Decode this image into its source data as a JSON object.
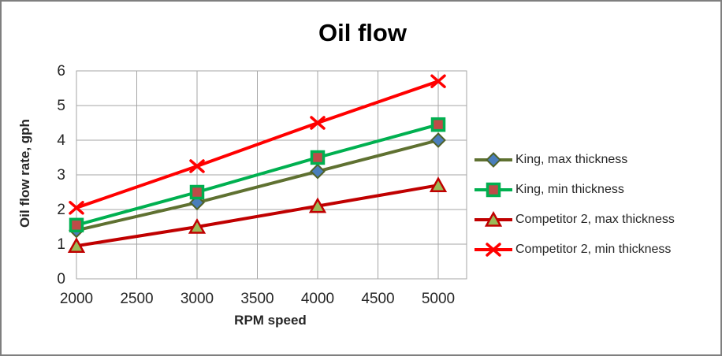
{
  "colors": {
    "background": "#ffffff",
    "frame_border": "#7f7f7f",
    "gridline": "#a6a6a6",
    "tick_text": "#262626",
    "title_text": "#000000"
  },
  "chart_data": {
    "type": "line",
    "title": "Oil flow",
    "xlabel": "RPM speed",
    "ylabel": "Oil flow rate, gph",
    "x": [
      2000,
      3000,
      4000,
      5000
    ],
    "xticks": [
      2000,
      2500,
      3000,
      3500,
      4000,
      4500,
      5000
    ],
    "yticks": [
      0,
      1,
      2,
      3,
      4,
      5,
      6
    ],
    "xlim": [
      2000,
      5235
    ],
    "ylim": [
      0,
      6
    ],
    "grid": true,
    "legend_position": "right",
    "series": [
      {
        "name": "King, max thickness",
        "values": [
          1.4,
          2.2,
          3.1,
          4.0
        ],
        "line_color": "#5f7131",
        "marker": "diamond",
        "marker_fill": "#4a7ebb",
        "marker_stroke": "#4f6228"
      },
      {
        "name": "King, min thickness",
        "values": [
          1.55,
          2.5,
          3.5,
          4.45
        ],
        "line_color": "#00b050",
        "marker": "square",
        "marker_fill": "#be4b48",
        "marker_stroke": "#00b050"
      },
      {
        "name": "Competitor 2, max thickness",
        "values": [
          0.95,
          1.5,
          2.1,
          2.7
        ],
        "line_color": "#c00000",
        "marker": "triangle",
        "marker_fill": "#9bbb59",
        "marker_stroke": "#c00000"
      },
      {
        "name": "Competitor 2, min thickness",
        "values": [
          2.05,
          3.25,
          4.5,
          5.7
        ],
        "line_color": "#ff0000",
        "marker": "x",
        "marker_fill": "none",
        "marker_stroke": "#ff0000"
      }
    ]
  }
}
